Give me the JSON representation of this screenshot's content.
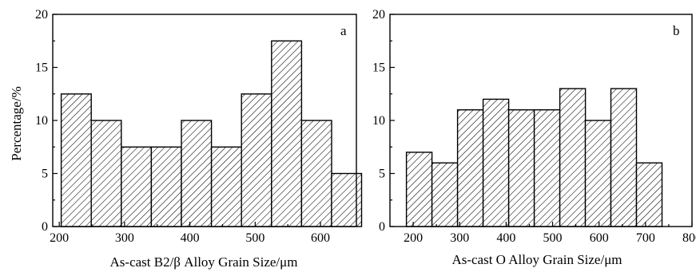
{
  "chart_data": [
    {
      "type": "bar",
      "panel_label": "a",
      "xlabel": "As-cast B2/β Alloy Grain Size/μm",
      "ylabel": "Percentage/%",
      "xlim": [
        190,
        655
      ],
      "ylim": [
        0,
        20
      ],
      "x_ticks": [
        200,
        300,
        400,
        500,
        600
      ],
      "y_ticks": [
        0,
        5,
        10,
        15,
        20
      ],
      "bin_width": 46,
      "bins": [
        {
          "center": 226,
          "value": 12.5
        },
        {
          "center": 272,
          "value": 10
        },
        {
          "center": 318,
          "value": 7.5
        },
        {
          "center": 364,
          "value": 7.5
        },
        {
          "center": 410,
          "value": 10
        },
        {
          "center": 456,
          "value": 7.5
        },
        {
          "center": 502,
          "value": 12.5
        },
        {
          "center": 548,
          "value": 17.5
        },
        {
          "center": 594,
          "value": 10
        },
        {
          "center": 640,
          "value": 5
        }
      ],
      "hatch": "diagonal"
    },
    {
      "type": "bar",
      "panel_label": "b",
      "xlabel": "As-cast O Alloy Grain Size/μm",
      "ylabel": "",
      "xlim": [
        150,
        800
      ],
      "ylim": [
        0,
        20
      ],
      "x_ticks": [
        200,
        300,
        400,
        500,
        600,
        700,
        800
      ],
      "y_ticks": [
        0,
        5,
        10,
        15,
        20
      ],
      "bin_width": 55,
      "bins": [
        {
          "center": 213,
          "value": 7
        },
        {
          "center": 268,
          "value": 6
        },
        {
          "center": 323,
          "value": 11
        },
        {
          "center": 378,
          "value": 12
        },
        {
          "center": 433,
          "value": 11
        },
        {
          "center": 488,
          "value": 11
        },
        {
          "center": 543,
          "value": 13
        },
        {
          "center": 598,
          "value": 10
        },
        {
          "center": 653,
          "value": 13
        },
        {
          "center": 708,
          "value": 6
        }
      ],
      "hatch": "diagonal"
    }
  ]
}
